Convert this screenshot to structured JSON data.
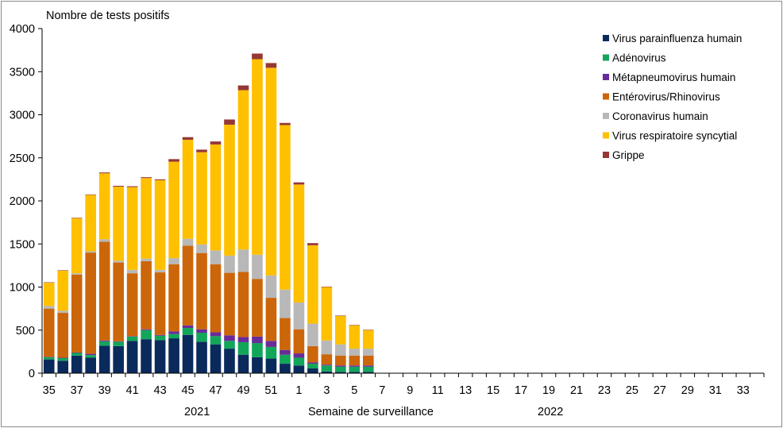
{
  "chart_data": {
    "type": "bar",
    "stacked": true,
    "title": "",
    "ylabel": "Nombre de tests positifs",
    "xlabel": "Semaine de surveillance",
    "year_labels": [
      "2021",
      "2022"
    ],
    "ylim": [
      0,
      4000
    ],
    "yticks": [
      0,
      500,
      1000,
      1500,
      2000,
      2500,
      3000,
      3500,
      4000
    ],
    "grid": false,
    "legend_position": "top-right",
    "categories": [
      "35",
      "36",
      "37",
      "38",
      "39",
      "40",
      "41",
      "42",
      "43",
      "44",
      "45",
      "46",
      "47",
      "48",
      "49",
      "50",
      "51",
      "52",
      "1",
      "2",
      "3",
      "4",
      "5",
      "6",
      "7",
      "8",
      "9",
      "10",
      "11",
      "12",
      "13",
      "14",
      "15",
      "16",
      "17",
      "18",
      "19",
      "20",
      "21",
      "22",
      "23",
      "24",
      "25",
      "26",
      "27",
      "28",
      "29",
      "30",
      "31",
      "32",
      "33",
      "34"
    ],
    "tick_labels": [
      "35",
      "",
      "37",
      "",
      "39",
      "",
      "41",
      "",
      "43",
      "",
      "45",
      "",
      "47",
      "",
      "49",
      "",
      "51",
      "",
      "1",
      "",
      "3",
      "",
      "5",
      "",
      "7",
      "",
      "9",
      "",
      "11",
      "",
      "13",
      "",
      "15",
      "",
      "17",
      "",
      "19",
      "",
      "21",
      "",
      "23",
      "",
      "25",
      "",
      "27",
      "",
      "29",
      "",
      "31",
      "",
      "33",
      ""
    ],
    "series": [
      {
        "name": "Virus parainfluenza humain",
        "color": "#0b2a5c",
        "values": [
          160,
          145,
          205,
          180,
          320,
          315,
          375,
          395,
          385,
          405,
          445,
          365,
          335,
          285,
          215,
          185,
          170,
          110,
          90,
          55,
          20,
          15,
          15,
          15,
          0,
          0,
          0,
          0,
          0,
          0,
          0,
          0,
          0,
          0,
          0,
          0,
          0,
          0,
          0,
          0,
          0,
          0,
          0,
          0,
          0,
          0,
          0,
          0,
          0,
          0,
          0,
          0
        ]
      },
      {
        "name": "Adénovirus",
        "color": "#12a65a",
        "values": [
          25,
          30,
          30,
          30,
          50,
          50,
          50,
          105,
          50,
          50,
          80,
          105,
          95,
          90,
          145,
          165,
          135,
          105,
          90,
          55,
          70,
          60,
          60,
          60,
          0,
          0,
          0,
          0,
          0,
          0,
          0,
          0,
          0,
          0,
          0,
          0,
          0,
          0,
          0,
          0,
          0,
          0,
          0,
          0,
          0,
          0,
          0,
          0,
          0,
          0,
          0,
          0
        ]
      },
      {
        "name": "Métapneumovirus humain",
        "color": "#6a2b9a",
        "values": [
          5,
          5,
          5,
          15,
          10,
          5,
          5,
          10,
          10,
          30,
          30,
          40,
          45,
          65,
          60,
          75,
          70,
          55,
          50,
          15,
          10,
          15,
          15,
          15,
          0,
          0,
          0,
          0,
          0,
          0,
          0,
          0,
          0,
          0,
          0,
          0,
          0,
          0,
          0,
          0,
          0,
          0,
          0,
          0,
          0,
          0,
          0,
          0,
          0,
          0,
          0,
          0
        ]
      },
      {
        "name": "Entérovirus/Rhinovirus",
        "color": "#cc660a",
        "values": [
          560,
          520,
          905,
          1175,
          1145,
          915,
          730,
          790,
          725,
          780,
          925,
          885,
          790,
          725,
          755,
          670,
          500,
          370,
          280,
          190,
          120,
          115,
          115,
          115,
          0,
          0,
          0,
          0,
          0,
          0,
          0,
          0,
          0,
          0,
          0,
          0,
          0,
          0,
          0,
          0,
          0,
          0,
          0,
          0,
          0,
          0,
          0,
          0,
          0,
          0,
          0,
          0
        ]
      },
      {
        "name": "Coronavirus humain",
        "color": "#b8b8b8",
        "values": [
          30,
          25,
          15,
          15,
          30,
          20,
          40,
          30,
          30,
          70,
          80,
          100,
          160,
          200,
          260,
          280,
          260,
          330,
          310,
          260,
          160,
          130,
          80,
          80,
          0,
          0,
          0,
          0,
          0,
          0,
          0,
          0,
          0,
          0,
          0,
          0,
          0,
          0,
          0,
          0,
          0,
          0,
          0,
          0,
          0,
          0,
          0,
          0,
          0,
          0,
          0,
          0
        ]
      },
      {
        "name": "Virus respiratoire syncytial",
        "color": "#ffc000",
        "values": [
          270,
          465,
          640,
          655,
          765,
          860,
          960,
          935,
          1040,
          1120,
          1150,
          1070,
          1230,
          1520,
          1850,
          2270,
          2410,
          1910,
          1370,
          910,
          620,
          330,
          270,
          215,
          0,
          0,
          0,
          0,
          0,
          0,
          0,
          0,
          0,
          0,
          0,
          0,
          0,
          0,
          0,
          0,
          0,
          0,
          0,
          0,
          0,
          0,
          0,
          0,
          0,
          0,
          0,
          0
        ]
      },
      {
        "name": "Grippe",
        "color": "#953735",
        "values": [
          5,
          5,
          5,
          5,
          10,
          10,
          10,
          10,
          10,
          30,
          30,
          30,
          35,
          60,
          55,
          65,
          55,
          25,
          25,
          25,
          5,
          5,
          5,
          5,
          0,
          0,
          0,
          0,
          0,
          0,
          0,
          0,
          0,
          0,
          0,
          0,
          0,
          0,
          0,
          0,
          0,
          0,
          0,
          0,
          0,
          0,
          0,
          0,
          0,
          0,
          0,
          0
        ]
      }
    ]
  }
}
